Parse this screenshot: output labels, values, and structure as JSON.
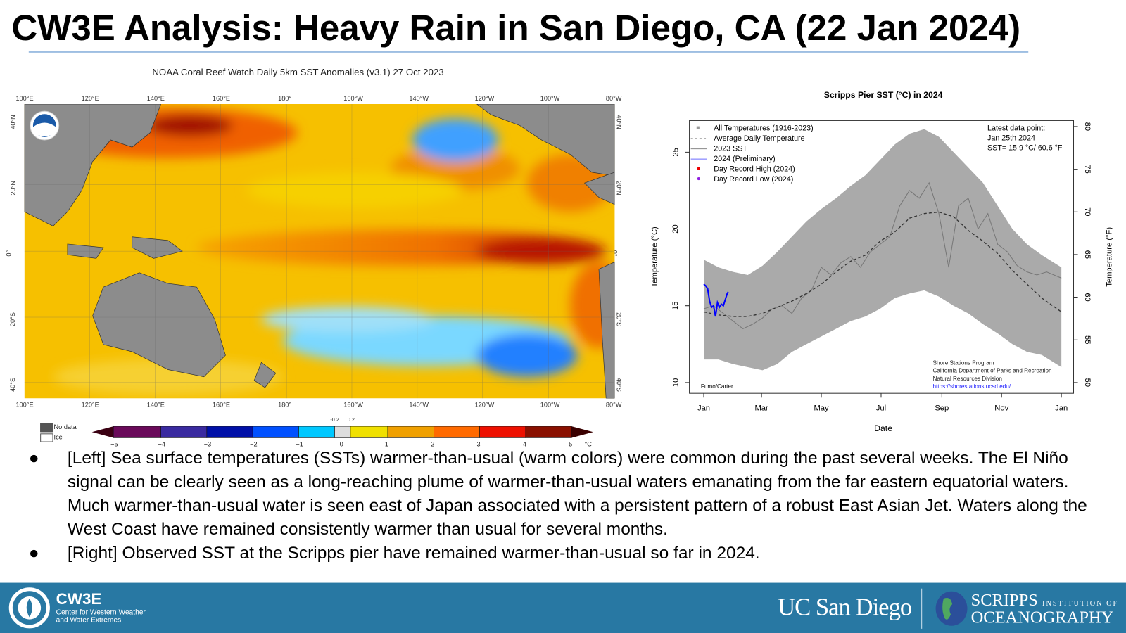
{
  "title": "CW3E Analysis: Heavy Rain in San Diego, CA (22 Jan 2024)",
  "map": {
    "title": "NOAA Coral Reef Watch Daily 5km SST Anomalies  (v3.1)   27 Oct 2023",
    "lon_labels": [
      "100°E",
      "120°E",
      "140°E",
      "160°E",
      "180°",
      "160°W",
      "140°W",
      "120°W",
      "100°W",
      "80°W"
    ],
    "lat_labels": [
      "40°N",
      "20°N",
      "0°",
      "20°S",
      "40°S"
    ],
    "logo_text": "NOAA",
    "legend": {
      "no_data": "No data",
      "ice": "Ice"
    },
    "colorbar": {
      "ticks": [
        "−5",
        "−4",
        "−3",
        "−2",
        "−1",
        "0",
        "1",
        "2",
        "3",
        "4",
        "5"
      ],
      "small_ticks": [
        "-0.2",
        "0.2"
      ],
      "unit": "°C",
      "colors": [
        "#3a0012",
        "#6a0a5a",
        "#3a2aa0",
        "#0010a8",
        "#0050ff",
        "#00c8ff",
        "#dddddd",
        "#f0e000",
        "#f0a000",
        "#ff6a00",
        "#ee1000",
        "#8a1000",
        "#3a0000"
      ]
    }
  },
  "chart_data": {
    "type": "line",
    "title": "Scripps Pier SST (°C) in 2024",
    "xlabel": "Date",
    "ylabel": "Temperature (°C)",
    "ylabel_right": "Temperature (°F)",
    "x_ticks": [
      "Jan",
      "Mar",
      "May",
      "Jul",
      "Sep",
      "Nov",
      "Jan"
    ],
    "y_ticks": [
      "10",
      "15",
      "20",
      "25"
    ],
    "y_ticks_right": [
      "50",
      "55",
      "60",
      "65",
      "70",
      "75",
      "80"
    ],
    "ylim": [
      9.3,
      27.3
    ],
    "xlim_days": [
      0,
      365
    ],
    "legend": [
      "All Temperatures (1916-2023)",
      "Average Daily Temperature",
      "2023 SST",
      "2024 (Preliminary)",
      "Day Record High (2024)",
      "Day Record Low (2024)"
    ],
    "latest_point": [
      "Latest data point:",
      "Jan 25th 2024",
      "SST= 15.9 °C/ 60.6 °F"
    ],
    "credits": [
      "Shore Stations Program",
      "California Department of Parks and Recreation",
      "Natural Resources Division",
      "https://shorestations.ucsd.edu/"
    ],
    "author": "Fumo/Carter",
    "envelope_days": [
      0,
      15,
      30,
      45,
      60,
      75,
      90,
      105,
      120,
      135,
      150,
      165,
      180,
      195,
      210,
      225,
      240,
      255,
      270,
      285,
      300,
      315,
      330,
      345,
      365
    ],
    "envelope_high": [
      18,
      17.5,
      17.2,
      17,
      17.6,
      18.5,
      19.5,
      20.5,
      21.3,
      22,
      22.8,
      23.5,
      24.5,
      25.5,
      26.2,
      26.5,
      26,
      25,
      24,
      23,
      21.5,
      20,
      19,
      18.3,
      17.5
    ],
    "envelope_low": [
      11.5,
      11.5,
      11.2,
      11,
      10.8,
      11.2,
      12,
      12.5,
      13,
      13.5,
      14,
      14.3,
      14.8,
      15.5,
      15.8,
      16,
      15.6,
      15,
      14.5,
      13.8,
      13.2,
      12.5,
      12,
      11.8,
      11
    ],
    "series": [
      {
        "name": "Average Daily Temperature",
        "days": [
          0,
          15,
          30,
          45,
          60,
          75,
          90,
          105,
          120,
          135,
          150,
          165,
          180,
          195,
          210,
          225,
          240,
          255,
          270,
          285,
          300,
          315,
          330,
          345,
          365
        ],
        "values": [
          14.6,
          14.4,
          14.3,
          14.3,
          14.5,
          14.9,
          15.3,
          15.8,
          16.4,
          17.2,
          17.9,
          18.3,
          19.2,
          19.8,
          20.7,
          21,
          21.1,
          20.8,
          19.9,
          19.2,
          18.4,
          17.3,
          16.4,
          15.5,
          14.6
        ]
      },
      {
        "name": "2023 SST",
        "days": [
          0,
          10,
          20,
          30,
          40,
          50,
          60,
          70,
          80,
          90,
          100,
          110,
          120,
          130,
          140,
          150,
          160,
          170,
          180,
          190,
          200,
          210,
          220,
          230,
          240,
          250,
          260,
          270,
          280,
          290,
          300,
          310,
          320,
          330,
          340,
          350,
          365
        ],
        "values": [
          14.8,
          15,
          14.5,
          14,
          13.5,
          13.8,
          14.2,
          14.8,
          15,
          14.5,
          15.5,
          16,
          17.5,
          17,
          17.8,
          18.2,
          17.5,
          18.5,
          19,
          19.5,
          21.5,
          22.5,
          22,
          23,
          21,
          17.5,
          21.5,
          22,
          20,
          21,
          19,
          18.5,
          17.6,
          17.2,
          17,
          17.2,
          16.8
        ]
      },
      {
        "name": "2024 (Preliminary)",
        "days": [
          0,
          2,
          4,
          6,
          8,
          10,
          12,
          14,
          16,
          18,
          20,
          22,
          24,
          25
        ],
        "values": [
          16.4,
          16.3,
          16.1,
          15.3,
          14.9,
          15.0,
          14.3,
          15.2,
          14.9,
          15.1,
          15.0,
          15.4,
          15.8,
          15.9
        ]
      }
    ]
  },
  "bullets": [
    "[Left] Sea surface temperatures (SSTs) warmer-than-usual (warm colors) were common during the past several weeks. The El Niño signal can be clearly seen as a long-reaching plume of warmer-than-usual waters emanating from the far eastern equatorial waters. Much warmer-than-usual water is seen east of Japan associated with a persistent pattern of a robust East Asian Jet. Waters along the West Coast have remained consistently warmer than usual for several months.",
    "[Right] Observed SST at the Scripps pier have remained warmer-than-usual so far in 2024."
  ],
  "bullet_glyph": "●",
  "footer": {
    "cw3e_name": "CW3E",
    "cw3e_sub1": "Center for Western Weather",
    "cw3e_sub2": "and Water Extremes",
    "ucsd": "UC San Diego",
    "sio_line1": "SCRIPPS",
    "sio_line1_small": "INSTITUTION OF",
    "sio_line2": "OCEANOGRAPHY",
    "bg": "#2878a3"
  }
}
